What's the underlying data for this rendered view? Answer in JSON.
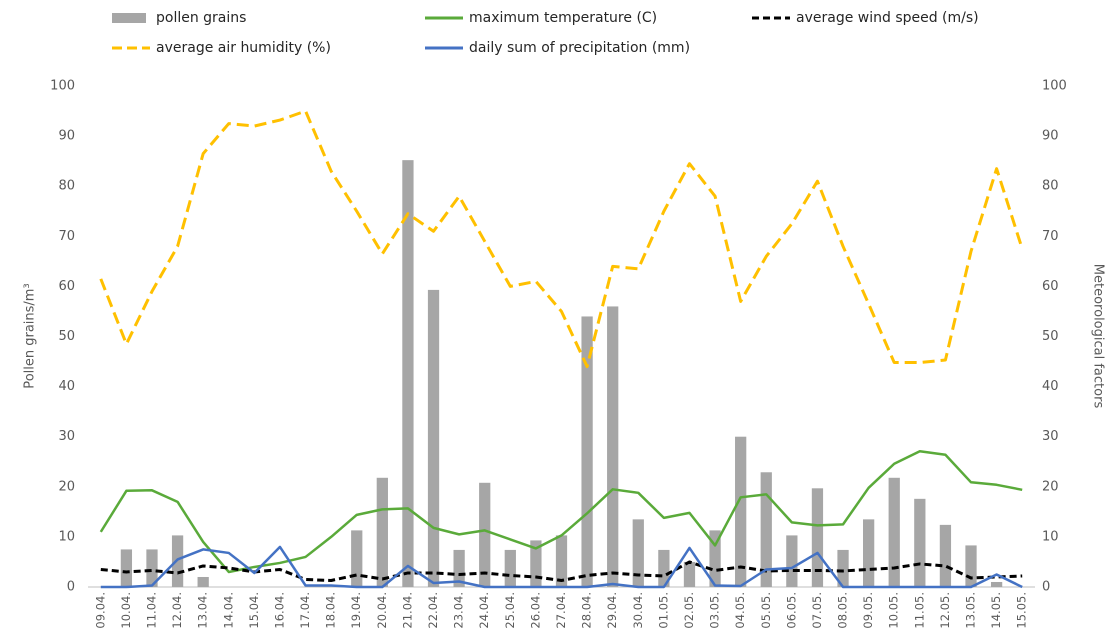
{
  "chart_data": {
    "type": "bar",
    "y_label": "Pollen grains/m³",
    "y2_label": "Meteorological factors",
    "categories": [
      "09.04.",
      "10.04.",
      "11.04.",
      "12.04.",
      "13.04.",
      "14.04.",
      "15.04.",
      "16.04.",
      "17.04.",
      "18.04.",
      "19.04.",
      "20.04.",
      "21.04.",
      "22.04.",
      "23.04.",
      "24.04.",
      "25.04.",
      "26.04.",
      "27.04.",
      "28.04.",
      "29.04.",
      "30.04.",
      "01.05.",
      "02.05.",
      "03.05.",
      "04.05.",
      "05.05.",
      "06.05.",
      "07.05.",
      "08.05.",
      "09.05.",
      "10.05.",
      "11.05.",
      "12.05.",
      "13.05.",
      "14.05.",
      "15.05."
    ],
    "series": [
      {
        "name": "pollen grains",
        "type": "bar",
        "color": "#a6a6a6",
        "values": [
          0,
          7.5,
          7.5,
          10.3,
          2,
          0,
          0,
          0,
          0,
          0,
          11.3,
          21.8,
          85.2,
          59.3,
          7.4,
          20.8,
          7.4,
          9.3,
          10.3,
          54,
          56,
          13.5,
          7.4,
          5,
          11.3,
          30,
          22.9,
          10.3,
          19.7,
          7.4,
          13.5,
          21.8,
          17.6,
          12.4,
          8.3,
          1,
          0
        ]
      },
      {
        "name": "maximum temperature (C)",
        "type": "line",
        "axis": "y2",
        "color": "#5aaa3a",
        "dashed": false,
        "values": [
          11,
          19.2,
          19.3,
          17,
          9,
          3,
          4,
          4.8,
          6,
          10,
          14.4,
          15.5,
          15.7,
          11.8,
          10.5,
          11.3,
          9.5,
          7.7,
          10.3,
          14.7,
          19.5,
          18.8,
          13.8,
          14.8,
          8.3,
          17.9,
          18.5,
          12.9,
          12.3,
          12.5,
          19.8,
          24.6,
          27.1,
          26.4,
          20.9,
          20.4,
          19.4
        ]
      },
      {
        "name": "average wind speed (m/s)",
        "type": "line",
        "axis": "y2",
        "color": "#000000",
        "dashed": true,
        "values": [
          3.5,
          3,
          3.3,
          2.8,
          4.2,
          3.8,
          3,
          3.5,
          1.5,
          1.3,
          2.4,
          1.6,
          2.8,
          2.8,
          2.5,
          2.8,
          2.3,
          2,
          1.3,
          2.3,
          2.8,
          2.4,
          2.2,
          5,
          3.3,
          4,
          3.2,
          3.3,
          3.3,
          3.2,
          3.5,
          3.8,
          4.6,
          4.2,
          1.8,
          2,
          2.2
        ]
      },
      {
        "name": "average air humidity (%)",
        "type": "line",
        "axis": "y2",
        "color": "#ffc000",
        "dashed": true,
        "values": [
          61.5,
          48.5,
          59,
          68,
          86.5,
          92.5,
          92,
          93.2,
          95,
          83,
          75,
          66.5,
          74.5,
          71,
          78,
          69,
          60,
          61,
          55,
          44,
          64,
          63.5,
          75,
          84.5,
          78,
          57,
          66,
          72.5,
          81,
          68,
          56.5,
          44.8,
          44.8,
          45.3,
          67,
          83.5,
          67.5
        ]
      },
      {
        "name": "daily sum of precipitation (mm)",
        "type": "line",
        "axis": "y2",
        "color": "#4472c4",
        "dashed": false,
        "values": [
          0,
          0,
          0.3,
          5.5,
          7.5,
          6.8,
          2.8,
          8,
          0.3,
          0.3,
          0,
          0,
          4.2,
          0.8,
          1.1,
          0,
          0,
          0,
          0,
          0,
          0.6,
          0,
          0,
          7.8,
          0.3,
          0.2,
          3.5,
          3.8,
          6.8,
          0,
          0,
          0,
          0,
          0,
          0,
          2.5,
          0
        ]
      }
    ],
    "ylim": [
      0,
      100
    ],
    "yticks": [
      0,
      10,
      20,
      30,
      40,
      50,
      60,
      70,
      80,
      90,
      100
    ],
    "y2lim": [
      0,
      100
    ],
    "y2ticks": [
      0,
      10,
      20,
      30,
      40,
      50,
      60,
      70,
      80,
      90,
      100
    ],
    "grid": false,
    "legend": "top"
  }
}
